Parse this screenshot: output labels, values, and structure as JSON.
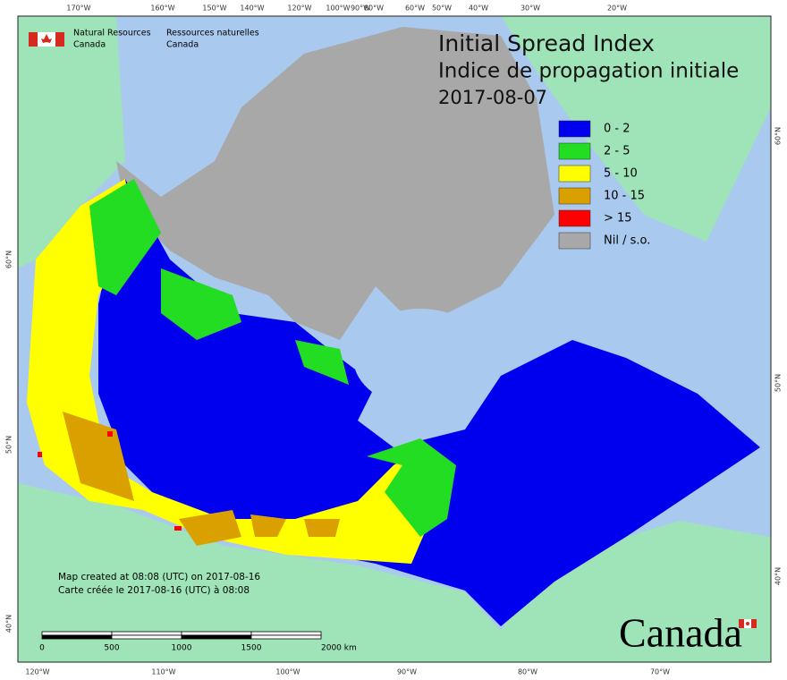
{
  "header": {
    "org_en": [
      "Natural Resources",
      "Canada"
    ],
    "org_fr": [
      "Ressources naturelles",
      "Canada"
    ]
  },
  "title": "Initial Spread Index",
  "subtitle": "Indice de propagation initiale",
  "date": "2017-08-07",
  "legend": [
    {
      "label": "0 - 2",
      "color": "#0000ee"
    },
    {
      "label": "2 - 5",
      "color": "#22dd22"
    },
    {
      "label": "5 - 10",
      "color": "#ffff00"
    },
    {
      "label": "10 - 15",
      "color": "#d9a000"
    },
    {
      "label": "> 15",
      "color": "#ff0000"
    },
    {
      "label": "Nil / s.o.",
      "color": "#a8a8a8"
    }
  ],
  "graticule": {
    "top": [
      "170°W",
      "160°W",
      "150°W",
      "140°W",
      "120°W",
      "100°W",
      "90°W",
      "80°W",
      "60°W",
      "50°W",
      "40°W",
      "30°W",
      "20°W"
    ],
    "bottom": [
      "120°W",
      "110°W",
      "100°W",
      "90°W",
      "80°W",
      "70°W"
    ],
    "left": [
      "60°N",
      "50°N",
      "40°N"
    ],
    "right": [
      "60°N",
      "50°N",
      "40°N"
    ]
  },
  "credits": [
    "Map created at 08:08 (UTC) on 2017-08-16",
    "Carte créée le 2017-08-16 (UTC) à 08:08"
  ],
  "scale": [
    "0",
    "500",
    "1000",
    "1500",
    "2000 km"
  ],
  "wordmark": "Canada"
}
